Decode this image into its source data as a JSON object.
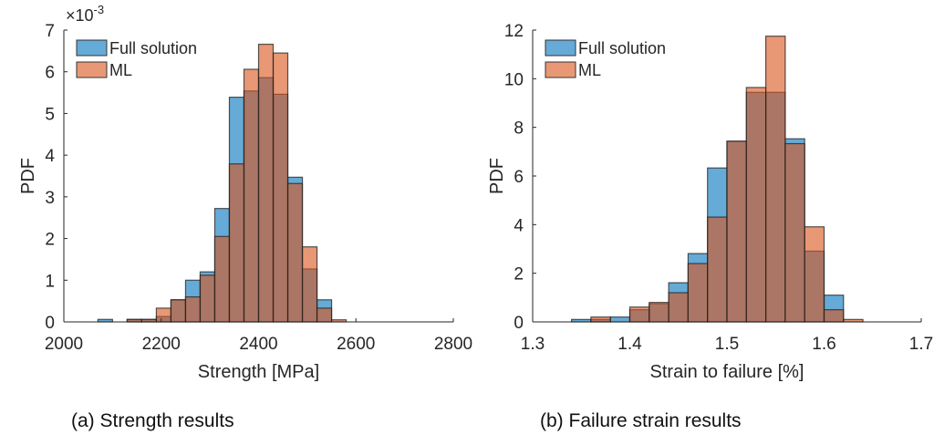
{
  "colors": {
    "full_solution": "#0072BD",
    "ml": "#D95319",
    "edge": "#222222"
  },
  "chart_data": [
    {
      "type": "bar",
      "caption": "(a) Strength results",
      "xlabel": "Strength [MPa]",
      "ylabel": "PDF",
      "y_exponent_label": "×10",
      "y_exponent": "-3",
      "xlim": [
        2000,
        2800
      ],
      "ylim": [
        0,
        7
      ],
      "xticks": [
        2000,
        2200,
        2400,
        2600,
        2800
      ],
      "yticks": [
        0,
        1,
        2,
        3,
        4,
        5,
        6,
        7
      ],
      "bin_width": 30,
      "bin_starts": [
        2070,
        2100,
        2130,
        2160,
        2190,
        2220,
        2250,
        2280,
        2310,
        2340,
        2370,
        2400,
        2430,
        2460,
        2490,
        2520,
        2550
      ],
      "legend_position": "top-left",
      "series": [
        {
          "name": "Full solution",
          "values": [
            0.06,
            0,
            0.06,
            0.06,
            0.13,
            0.53,
            1.0,
            1.2,
            2.72,
            5.39,
            5.54,
            5.86,
            5.46,
            3.47,
            1.27,
            0.53,
            0
          ]
        },
        {
          "name": "ML",
          "values": [
            0,
            0,
            0.06,
            0.06,
            0.33,
            0.53,
            0.6,
            1.12,
            2.05,
            3.79,
            6.06,
            6.66,
            6.45,
            3.32,
            1.8,
            0.33,
            0.05
          ]
        }
      ]
    },
    {
      "type": "bar",
      "caption": "(b) Failure strain results",
      "xlabel": "Strain to failure [%]",
      "ylabel": "PDF",
      "xlim": [
        1.3,
        1.7
      ],
      "ylim": [
        0,
        12
      ],
      "xticks": [
        1.3,
        1.4,
        1.5,
        1.6,
        1.7
      ],
      "yticks": [
        0,
        2,
        4,
        6,
        8,
        10,
        12
      ],
      "bin_width": 0.02,
      "bin_starts": [
        1.34,
        1.36,
        1.38,
        1.4,
        1.42,
        1.44,
        1.46,
        1.48,
        1.5,
        1.52,
        1.54,
        1.56,
        1.58,
        1.6,
        1.62
      ],
      "legend_position": "top-left",
      "series": [
        {
          "name": "Full solution",
          "values": [
            0.1,
            0.1,
            0.2,
            0.5,
            0.75,
            1.61,
            2.81,
            6.33,
            7.43,
            9.44,
            9.44,
            7.53,
            2.91,
            1.1,
            0
          ]
        },
        {
          "name": "ML",
          "values": [
            0,
            0.2,
            0,
            0.61,
            0.8,
            1.2,
            2.4,
            4.31,
            7.43,
            9.64,
            11.75,
            7.33,
            3.91,
            0.5,
            0.1
          ]
        }
      ]
    }
  ]
}
